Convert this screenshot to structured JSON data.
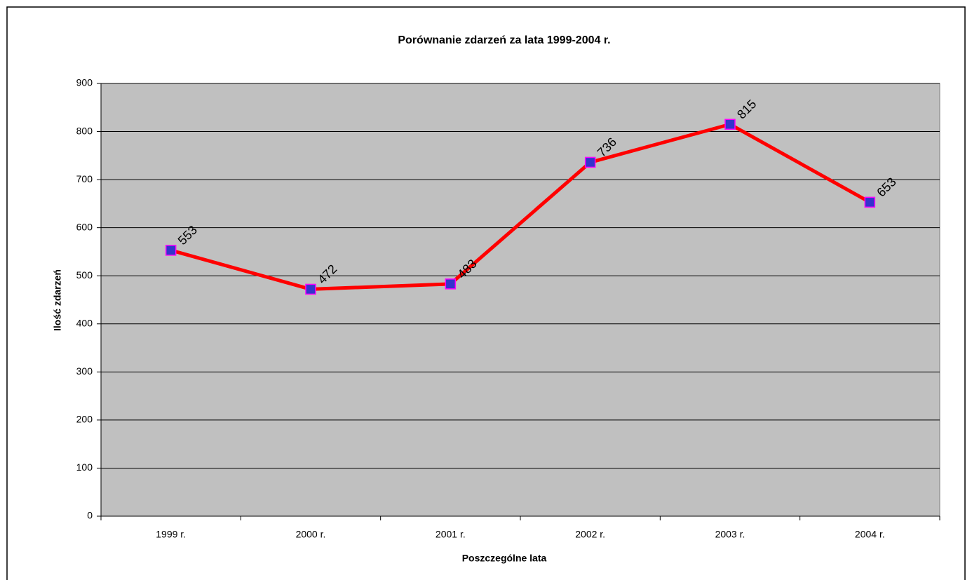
{
  "chart_data": {
    "type": "line",
    "title": "Porównanie zdarzeń za lata 1999-2004 r.",
    "x_label": "Poszczególne lata",
    "y_label": "Ilość zdarzeń",
    "categories": [
      "1999 r.",
      "2000 r.",
      "2001 r.",
      "2002 r.",
      "2003 r.",
      "2004 r."
    ],
    "series": [
      {
        "name": "Ilość zdarzeń",
        "color": "#ff0000",
        "marker_color": "#3333cc",
        "marker_edge": "#ff00ff",
        "values": [
          553,
          472,
          483,
          736,
          815,
          653
        ]
      }
    ],
    "ylim": [
      0,
      900
    ],
    "yticks": [
      0,
      100,
      200,
      300,
      400,
      500,
      600,
      700,
      800,
      900
    ],
    "grid": true,
    "plot_background": "#c0c0c0"
  }
}
